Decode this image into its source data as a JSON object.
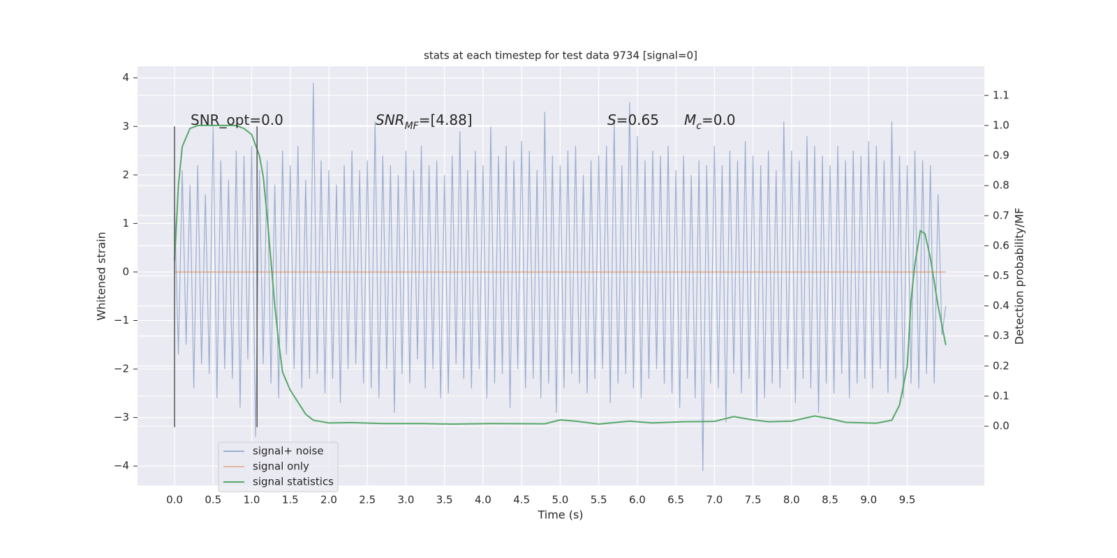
{
  "chart_data": {
    "type": "line",
    "title": "stats at each timestep for test data 9734 [signal=0]",
    "xlabel": "Time (s)",
    "ylabel": "Whitened strain",
    "y2label": "Detection probability/MF",
    "xlim": [
      -0.48,
      10.5
    ],
    "ylim": [
      -4.4,
      4.24
    ],
    "y2lim": [
      -0.197,
      1.197
    ],
    "xticks": [
      {
        "value": 0,
        "label": "0.0"
      },
      {
        "value": 0.5,
        "label": "0.5"
      },
      {
        "value": 1,
        "label": "1.0"
      },
      {
        "value": 1.5,
        "label": "1.5"
      },
      {
        "value": 2,
        "label": "2.0"
      },
      {
        "value": 2.5,
        "label": "2.5"
      },
      {
        "value": 3,
        "label": "3.0"
      },
      {
        "value": 3.5,
        "label": "3.5"
      },
      {
        "value": 4,
        "label": "4.0"
      },
      {
        "value": 4.5,
        "label": "4.5"
      },
      {
        "value": 5,
        "label": "5.0"
      },
      {
        "value": 5.5,
        "label": "5.5"
      },
      {
        "value": 6,
        "label": "6.0"
      },
      {
        "value": 6.5,
        "label": "6.5"
      },
      {
        "value": 7,
        "label": "7.0"
      },
      {
        "value": 7.5,
        "label": "7.5"
      },
      {
        "value": 8,
        "label": "8.0"
      },
      {
        "value": 8.5,
        "label": "8.5"
      },
      {
        "value": 9,
        "label": "9.0"
      },
      {
        "value": 9.5,
        "label": "9.5"
      }
    ],
    "yticks": [
      {
        "value": -4,
        "label": "−4"
      },
      {
        "value": -3,
        "label": "−3"
      },
      {
        "value": -2,
        "label": "−2"
      },
      {
        "value": -1,
        "label": "−1"
      },
      0,
      1,
      2,
      3,
      4
    ],
    "y2ticks": [
      {
        "value": 0,
        "label": "0.0"
      },
      {
        "value": 0.1,
        "label": "0.1"
      },
      {
        "value": 0.2,
        "label": "0.2"
      },
      {
        "value": 0.3,
        "label": "0.3"
      },
      {
        "value": 0.4,
        "label": "0.4"
      },
      {
        "value": 0.5,
        "label": "0.5"
      },
      {
        "value": 0.6,
        "label": "0.6"
      },
      {
        "value": 0.7,
        "label": "0.7"
      },
      {
        "value": 0.8,
        "label": "0.8"
      },
      {
        "value": 0.9,
        "label": "0.9"
      },
      {
        "value": 1,
        "label": "1.0"
      },
      {
        "value": 1.1,
        "label": "1.1"
      }
    ],
    "grid": true,
    "legend": "lower left",
    "series": [
      {
        "name": "signal+ noise",
        "color": "#4c72b0",
        "opacity": 0.5,
        "x": [
          0,
          0.05,
          0.1,
          0.15,
          0.2,
          0.25,
          0.3,
          0.35,
          0.4,
          0.45,
          0.5,
          0.55,
          0.6,
          0.65,
          0.7,
          0.75,
          0.8,
          0.85,
          0.9,
          0.95,
          1,
          1.05,
          1.1,
          1.15,
          1.2,
          1.25,
          1.3,
          1.35,
          1.4,
          1.45,
          1.5,
          1.55,
          1.6,
          1.65,
          1.7,
          1.75,
          1.8,
          1.85,
          1.9,
          1.95,
          2,
          2.05,
          2.1,
          2.15,
          2.2,
          2.25,
          2.3,
          2.35,
          2.4,
          2.45,
          2.5,
          2.55,
          2.6,
          2.65,
          2.7,
          2.75,
          2.8,
          2.85,
          2.9,
          2.95,
          3,
          3.05,
          3.1,
          3.15,
          3.2,
          3.25,
          3.3,
          3.35,
          3.4,
          3.45,
          3.5,
          3.55,
          3.6,
          3.65,
          3.7,
          3.75,
          3.8,
          3.85,
          3.9,
          3.95,
          4,
          4.05,
          4.1,
          4.15,
          4.2,
          4.25,
          4.3,
          4.35,
          4.4,
          4.45,
          4.5,
          4.55,
          4.6,
          4.65,
          4.7,
          4.75,
          4.8,
          4.85,
          4.9,
          4.95,
          5,
          5.05,
          5.1,
          5.15,
          5.2,
          5.25,
          5.3,
          5.35,
          5.4,
          5.45,
          5.5,
          5.55,
          5.6,
          5.65,
          5.7,
          5.75,
          5.8,
          5.85,
          5.9,
          5.95,
          6,
          6.05,
          6.1,
          6.15,
          6.2,
          6.25,
          6.3,
          6.35,
          6.4,
          6.45,
          6.5,
          6.55,
          6.6,
          6.65,
          6.7,
          6.75,
          6.8,
          6.85,
          6.9,
          6.95,
          7,
          7.05,
          7.1,
          7.15,
          7.2,
          7.25,
          7.3,
          7.35,
          7.4,
          7.45,
          7.5,
          7.55,
          7.6,
          7.65,
          7.7,
          7.75,
          7.8,
          7.85,
          7.9,
          7.95,
          8,
          8.05,
          8.1,
          8.15,
          8.2,
          8.25,
          8.3,
          8.35,
          8.4,
          8.45,
          8.5,
          8.55,
          8.6,
          8.65,
          8.7,
          8.75,
          8.8,
          8.85,
          8.9,
          8.95,
          9,
          9.05,
          9.1,
          9.15,
          9.2,
          9.25,
          9.3,
          9.35,
          9.4,
          9.45,
          9.5,
          9.55,
          9.6,
          9.65,
          9.7,
          9.75,
          9.8,
          9.85,
          9.9,
          9.95,
          10
        ],
        "values": [
          1.4,
          -1.7,
          2.1,
          -1.5,
          1.8,
          -2.4,
          2.2,
          -1.9,
          1.6,
          -2.1,
          3.0,
          -2.6,
          2.3,
          -2.0,
          1.9,
          -2.2,
          2.5,
          -2.8,
          2.4,
          -1.8,
          2.6,
          -3.4,
          2.1,
          -1.9,
          2.3,
          -2.3,
          1.8,
          -2.6,
          2.5,
          -1.7,
          2.2,
          -2.0,
          2.6,
          -2.4,
          1.9,
          -2.2,
          3.9,
          -2.1,
          2.3,
          -2.5,
          2.1,
          -2.2,
          1.8,
          -2.7,
          2.2,
          -2.0,
          2.5,
          -1.9,
          2.1,
          -2.3,
          2.3,
          -2.4,
          3.1,
          -2.6,
          2.4,
          -2.0,
          2.2,
          -2.9,
          2.0,
          -2.1,
          2.5,
          -2.3,
          2.1,
          -1.8,
          2.6,
          -2.4,
          2.2,
          -2.0,
          2.3,
          -2.6,
          2.0,
          -2.5,
          2.4,
          -1.9,
          2.9,
          -2.2,
          2.1,
          -2.4,
          2.5,
          -2.0,
          2.2,
          -2.6,
          3.0,
          -2.3,
          2.4,
          -2.1,
          2.6,
          -2.8,
          2.3,
          -2.0,
          2.7,
          -2.4,
          2.5,
          -2.2,
          2.1,
          -2.6,
          3.3,
          -2.3,
          2.4,
          -2.9,
          2.2,
          -2.4,
          2.5,
          -2.1,
          2.6,
          -2.3,
          2.0,
          -2.5,
          2.3,
          -2.2,
          2.4,
          -2.0,
          2.6,
          -2.7,
          3.1,
          -2.3,
          2.2,
          -2.1,
          3.5,
          -2.4,
          2.8,
          -2.6,
          2.3,
          -2.2,
          2.5,
          -2.0,
          2.4,
          -2.3,
          2.6,
          -2.5,
          2.1,
          -2.8,
          2.4,
          -2.2,
          2.0,
          -2.6,
          2.3,
          -4.1,
          2.2,
          -2.3,
          2.6,
          -2.4,
          2.2,
          -3.1,
          2.5,
          -2.1,
          2.3,
          -2.5,
          2.7,
          -2.2,
          2.4,
          -3.0,
          2.2,
          -2.6,
          2.5,
          -2.3,
          2.1,
          -2.4,
          3.1,
          -2.0,
          2.5,
          -2.7,
          2.3,
          -2.2,
          2.8,
          -2.4,
          2.6,
          -2.9,
          2.4,
          -2.3,
          2.2,
          -2.5,
          2.6,
          -2.1,
          2.3,
          -2.6,
          2.5,
          -2.3,
          2.4,
          -2.2,
          2.7,
          -2.4,
          2.6,
          -2.0,
          2.3,
          -2.5,
          3.1,
          -2.2,
          2.4,
          -2.6,
          2.2,
          -2.3,
          2.5,
          -2.4,
          2.3,
          -2.1,
          2.2,
          -2.3,
          1.6,
          -1.3,
          -0.7
        ]
      },
      {
        "name": "signal only",
        "color": "#dd8452",
        "opacity": 0.5,
        "x": [
          0,
          10
        ],
        "values": [
          0,
          0
        ]
      },
      {
        "name": "signal statistics",
        "color": "#55a868",
        "opacity": 1,
        "axis": "y2",
        "x": [
          0,
          0.05,
          0.1,
          0.2,
          0.3,
          0.5,
          0.8,
          0.9,
          1.0,
          1.1,
          1.15,
          1.2,
          1.25,
          1.3,
          1.35,
          1.4,
          1.5,
          1.6,
          1.7,
          1.8,
          2.0,
          2.3,
          2.7,
          3.2,
          3.6,
          4.1,
          4.8,
          5.0,
          5.2,
          5.5,
          5.9,
          6.2,
          6.6,
          7.0,
          7.25,
          7.5,
          7.7,
          8.0,
          8.3,
          8.5,
          8.7,
          9.1,
          9.3,
          9.4,
          9.5,
          9.55,
          9.6,
          9.67,
          9.73,
          9.8,
          9.9,
          10.0
        ],
        "values": [
          0.55,
          0.8,
          0.93,
          0.99,
          1.0,
          1.0,
          1.0,
          0.99,
          0.97,
          0.9,
          0.83,
          0.7,
          0.55,
          0.4,
          0.28,
          0.18,
          0.12,
          0.08,
          0.04,
          0.02,
          0.011,
          0.012,
          0.009,
          0.009,
          0.007,
          0.009,
          0.008,
          0.021,
          0.017,
          0.007,
          0.017,
          0.011,
          0.015,
          0.016,
          0.032,
          0.021,
          0.015,
          0.017,
          0.034,
          0.025,
          0.013,
          0.01,
          0.02,
          0.07,
          0.2,
          0.42,
          0.54,
          0.65,
          0.64,
          0.56,
          0.4,
          0.27
        ]
      }
    ],
    "vlines": [
      {
        "x": 0,
        "ymin": -3.2,
        "ymax": 3.0,
        "color": "#555555"
      },
      {
        "x": 1.07,
        "ymin": -3.2,
        "ymax": 3.0,
        "color": "#555555"
      }
    ],
    "annotations": [
      {
        "parts": [
          {
            "text": "SNR_opt=0.0"
          }
        ]
      },
      {
        "parts": [
          {
            "text": "SNR",
            "style": "italic"
          },
          {
            "text": "MF",
            "style": "italic-sub"
          },
          {
            "text": "=[4.88]"
          }
        ]
      },
      {
        "parts": [
          {
            "text": "S",
            "style": "italic"
          },
          {
            "text": "=0.65"
          }
        ]
      },
      {
        "parts": [
          {
            "text": "M",
            "style": "italic"
          },
          {
            "text": "c",
            "style": "italic-sub"
          },
          {
            "text": "=0.0"
          }
        ]
      }
    ]
  }
}
